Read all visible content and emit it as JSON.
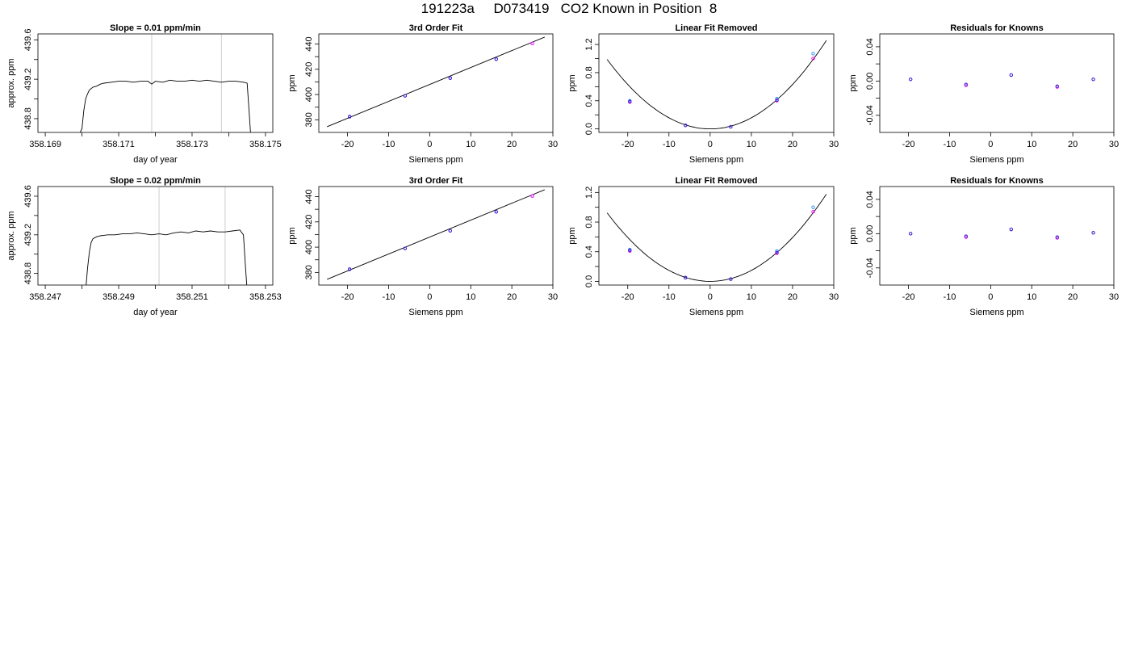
{
  "page": {
    "title": "191223a     D073419   CO2 Known in Position  8"
  },
  "chart_data": [
    {
      "type": "line",
      "title": "Slope =  0.01  ppm/min",
      "xlabel": "day of year",
      "ylabel": "approx. ppm",
      "xlim": [
        358.1688,
        358.1752
      ],
      "ylim": [
        438.66,
        439.66
      ],
      "xticks": [
        358.169,
        358.171,
        358.173,
        358.175
      ],
      "xticks_minor": [
        358.17,
        358.172,
        358.174
      ],
      "yticks": [
        438.8,
        439.2,
        439.6
      ],
      "yticks_minor": [
        439.0,
        439.4
      ],
      "vlines": [
        358.1719,
        358.1738
      ],
      "vline_color": "#cccccc",
      "series": [
        {
          "x": [
            358.1699,
            358.17,
            358.17005,
            358.1701,
            358.17015,
            358.1702,
            358.1703,
            358.1704,
            358.1705,
            358.1706,
            358.1708,
            358.171,
            358.1712,
            358.1714,
            358.1716,
            358.1718,
            358.1719,
            358.172,
            358.1722,
            358.1724,
            358.1726,
            358.1728,
            358.173,
            358.1732,
            358.1734,
            358.1736,
            358.1738,
            358.174,
            358.1742,
            358.1744,
            358.1745,
            358.17455,
            358.1746
          ],
          "values": [
            438.62,
            438.7,
            438.88,
            439.0,
            439.05,
            439.09,
            439.12,
            439.13,
            439.15,
            439.16,
            439.17,
            439.18,
            439.18,
            439.17,
            439.18,
            439.18,
            439.15,
            439.18,
            439.17,
            439.19,
            439.18,
            439.18,
            439.19,
            439.18,
            439.19,
            439.18,
            439.17,
            439.18,
            439.18,
            439.17,
            439.16,
            438.9,
            438.62
          ],
          "color": "#000000"
        }
      ]
    },
    {
      "type": "scatter",
      "title": "3rd Order Fit",
      "xlabel": "Siemens ppm",
      "ylabel": "ppm",
      "xlim": [
        -27,
        30
      ],
      "ylim": [
        370,
        448
      ],
      "xticks": [
        -20,
        -10,
        0,
        10,
        20,
        30
      ],
      "yticks": [
        380,
        400,
        420,
        440
      ],
      "yticks_minor": [
        390,
        410,
        430
      ],
      "fit_line": {
        "x": [
          -25,
          28
        ],
        "values": [
          374.5,
          445.5
        ]
      },
      "series": [
        {
          "x": [
            -19.5,
            -6.0,
            5.0,
            16.2,
            25.0
          ],
          "values": [
            382.5,
            399.0,
            413.0,
            428.0,
            440.5
          ],
          "color": "#1e90ff"
        },
        {
          "x": [
            -19.5,
            -6.0,
            5.0,
            16.2,
            25.0
          ],
          "values": [
            382.5,
            399.0,
            413.0,
            428.0,
            440.5
          ],
          "color": "#ff00ff"
        },
        {
          "x": [
            -19.5,
            -6.0,
            5.0,
            16.2
          ],
          "values": [
            382.5,
            399.0,
            413.0,
            428.0
          ],
          "color": "#2222cc"
        }
      ]
    },
    {
      "type": "scatter",
      "title": "Linear Fit Removed",
      "xlabel": "Siemens ppm",
      "ylabel": "ppm",
      "xlim": [
        -27,
        30
      ],
      "ylim": [
        -0.05,
        1.35
      ],
      "xticks": [
        -20,
        -10,
        0,
        10,
        20,
        30
      ],
      "yticks": [
        0.0,
        0.4,
        0.8,
        1.2
      ],
      "yticks_minor": [
        0.2,
        0.6,
        1.0
      ],
      "fit_curve": {
        "vertex": 0,
        "coef": 0.00158,
        "xrange": [
          -25,
          28.2
        ]
      },
      "series": [
        {
          "x": [
            -19.5,
            -6.0,
            5.0,
            16.2,
            25.0
          ],
          "values": [
            0.4,
            0.05,
            0.03,
            0.43,
            1.07
          ],
          "color": "#1e90ff"
        },
        {
          "x": [
            -19.5,
            -6.0,
            5.0,
            16.2,
            25.0
          ],
          "values": [
            0.38,
            0.05,
            0.03,
            0.4,
            1.0
          ],
          "color": "#ff00ff"
        },
        {
          "x": [
            -19.5,
            -6.0,
            5.0,
            16.2
          ],
          "values": [
            0.39,
            0.05,
            0.03,
            0.41
          ],
          "color": "#2222cc"
        }
      ]
    },
    {
      "type": "scatter",
      "title": "Residuals for Knowns",
      "xlabel": "Siemens ppm",
      "ylabel": "ppm",
      "xlim": [
        -27,
        30
      ],
      "ylim": [
        -0.06,
        0.055
      ],
      "xticks": [
        -20,
        -10,
        0,
        10,
        20,
        30
      ],
      "yticks": [
        -0.04,
        0.0,
        0.04
      ],
      "ytick_labels": [
        "-0.04",
        "0.00",
        "0.04"
      ],
      "yticks_minor": [
        -0.02,
        0.02
      ],
      "series": [
        {
          "x": [
            -19.5,
            -6.0,
            5.0,
            16.2,
            25.0
          ],
          "values": [
            0.002,
            -0.005,
            0.007,
            -0.007,
            0.002
          ],
          "color": "#ff00ff"
        },
        {
          "x": [
            -19.5,
            -6.0,
            5.0,
            16.2,
            25.0
          ],
          "values": [
            0.002,
            -0.004,
            0.007,
            -0.006,
            0.002
          ],
          "color": "#2222cc"
        }
      ]
    },
    {
      "type": "line",
      "title": "Slope =  0.02  ppm/min",
      "xlabel": "day of year",
      "ylabel": "approx. ppm",
      "xlim": [
        358.2468,
        358.2532
      ],
      "ylim": [
        438.68,
        439.7
      ],
      "xticks": [
        358.247,
        358.249,
        358.251,
        358.253
      ],
      "xticks_minor": [
        358.248,
        358.25,
        358.252
      ],
      "yticks": [
        438.8,
        439.2,
        439.6
      ],
      "yticks_minor": [
        439.0,
        439.4
      ],
      "vlines": [
        358.2501,
        358.2519
      ],
      "vline_color": "#cccccc",
      "series": [
        {
          "x": [
            358.2481,
            358.24815,
            358.2482,
            358.24825,
            358.2483,
            358.2484,
            358.2485,
            358.2487,
            358.2489,
            358.2491,
            358.2493,
            358.2495,
            358.2497,
            358.2499,
            358.2501,
            358.2503,
            358.2505,
            358.2507,
            358.2509,
            358.2511,
            358.2513,
            358.2515,
            358.2517,
            358.2519,
            358.2521,
            358.2523,
            358.2524,
            358.25245,
            358.2525
          ],
          "values": [
            438.62,
            438.85,
            439.02,
            439.12,
            439.16,
            439.18,
            439.19,
            439.2,
            439.2,
            439.21,
            439.21,
            439.22,
            439.21,
            439.2,
            439.21,
            439.2,
            439.22,
            439.23,
            439.22,
            439.24,
            439.23,
            439.24,
            439.23,
            439.23,
            439.24,
            439.25,
            439.2,
            438.9,
            438.62
          ],
          "color": "#000000"
        }
      ]
    },
    {
      "type": "scatter",
      "title": "3rd Order Fit",
      "xlabel": "Siemens ppm",
      "ylabel": "ppm",
      "xlim": [
        -27,
        30
      ],
      "ylim": [
        370,
        448
      ],
      "xticks": [
        -20,
        -10,
        0,
        10,
        20,
        30
      ],
      "yticks": [
        380,
        400,
        420,
        440
      ],
      "yticks_minor": [
        390,
        410,
        430
      ],
      "fit_line": {
        "x": [
          -25,
          28
        ],
        "values": [
          374.5,
          445.5
        ]
      },
      "series": [
        {
          "x": [
            -19.5,
            -6.0,
            5.0,
            16.2,
            25.0
          ],
          "values": [
            382.5,
            399.0,
            413.0,
            428.0,
            440.5
          ],
          "color": "#1e90ff"
        },
        {
          "x": [
            -19.5,
            -6.0,
            5.0,
            16.2,
            25.0
          ],
          "values": [
            382.5,
            399.0,
            413.0,
            428.0,
            440.5
          ],
          "color": "#ff00ff"
        },
        {
          "x": [
            -19.5,
            -6.0,
            5.0,
            16.2
          ],
          "values": [
            382.5,
            399.0,
            413.0,
            428.0
          ],
          "color": "#2222cc"
        }
      ]
    },
    {
      "type": "scatter",
      "title": "Linear Fit Removed",
      "xlabel": "Siemens ppm",
      "ylabel": "ppm",
      "xlim": [
        -27,
        30
      ],
      "ylim": [
        -0.05,
        1.28
      ],
      "xticks": [
        -20,
        -10,
        0,
        10,
        20,
        30
      ],
      "yticks": [
        0.0,
        0.4,
        0.8,
        1.2
      ],
      "yticks_minor": [
        0.2,
        0.6,
        1.0
      ],
      "fit_curve": {
        "vertex": 0,
        "coef": 0.00148,
        "xrange": [
          -25,
          28.2
        ]
      },
      "series": [
        {
          "x": [
            -19.5,
            -6.0,
            5.0,
            16.2,
            25.0
          ],
          "values": [
            0.43,
            0.05,
            0.03,
            0.41,
            1.0
          ],
          "color": "#1e90ff"
        },
        {
          "x": [
            -19.5,
            -6.0,
            5.0,
            16.2,
            25.0
          ],
          "values": [
            0.41,
            0.05,
            0.03,
            0.38,
            0.94
          ],
          "color": "#ff00ff"
        },
        {
          "x": [
            -19.5,
            -6.0,
            5.0,
            16.2
          ],
          "values": [
            0.42,
            0.05,
            0.03,
            0.39
          ],
          "color": "#2222cc"
        }
      ]
    },
    {
      "type": "scatter",
      "title": "Residuals for Knowns",
      "xlabel": "Siemens ppm",
      "ylabel": "ppm",
      "xlim": [
        -27,
        30
      ],
      "ylim": [
        -0.06,
        0.055
      ],
      "xticks": [
        -20,
        -10,
        0,
        10,
        20,
        30
      ],
      "yticks": [
        -0.04,
        0.0,
        0.04
      ],
      "ytick_labels": [
        "-0.04",
        "0.00",
        "0.04"
      ],
      "yticks_minor": [
        -0.02,
        0.02
      ],
      "series": [
        {
          "x": [
            -19.5,
            -6.0,
            5.0,
            16.2,
            25.0
          ],
          "values": [
            0.0,
            -0.004,
            0.005,
            -0.005,
            0.001
          ],
          "color": "#ff00ff"
        },
        {
          "x": [
            -19.5,
            -6.0,
            5.0,
            16.2,
            25.0
          ],
          "values": [
            0.0,
            -0.003,
            0.005,
            -0.004,
            0.001
          ],
          "color": "#2222cc"
        }
      ]
    }
  ]
}
